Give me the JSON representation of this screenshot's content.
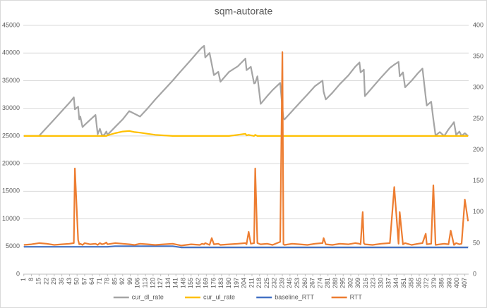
{
  "chart_data": {
    "type": "line",
    "title": "sqm-autorate",
    "grid": true,
    "legend": "bottom",
    "x": [
      1,
      8,
      15,
      22,
      29,
      36,
      43,
      47,
      48,
      51,
      52,
      53,
      55,
      57,
      62,
      67,
      69,
      71,
      73,
      75,
      77,
      78,
      85,
      92,
      98,
      103,
      108,
      115,
      122,
      130,
      138,
      146,
      155,
      163,
      165,
      167,
      168,
      172,
      174,
      176,
      180,
      182,
      190,
      198,
      205,
      206,
      208,
      210,
      213,
      214,
      216,
      219,
      225,
      230,
      237,
      239,
      240,
      241,
      248,
      255,
      262,
      269,
      276,
      277,
      279,
      285,
      292,
      300,
      306,
      310,
      311,
      313,
      314,
      315,
      322,
      330,
      338,
      342,
      346,
      347,
      350,
      352,
      358,
      364,
      368,
      371,
      372,
      376,
      378,
      380,
      384,
      388,
      392,
      394,
      397,
      399,
      402,
      404,
      407,
      410
    ],
    "xlim": [
      0.5,
      410.5
    ],
    "xticks": [
      1,
      8,
      15,
      22,
      29,
      36,
      43,
      50,
      57,
      64,
      71,
      78,
      85,
      92,
      99,
      106,
      113,
      120,
      127,
      134,
      141,
      148,
      155,
      162,
      169,
      176,
      183,
      190,
      197,
      204,
      211,
      218,
      225,
      232,
      239,
      246,
      253,
      260,
      267,
      274,
      281,
      288,
      295,
      302,
      309,
      316,
      323,
      330,
      337,
      344,
      351,
      358,
      365,
      372,
      379,
      386,
      393,
      400,
      407
    ],
    "ylim": [
      0,
      45000
    ],
    "yticks": [
      0,
      5000,
      10000,
      15000,
      20000,
      25000,
      30000,
      35000,
      40000,
      45000
    ],
    "y2lim": [
      0,
      400
    ],
    "y2ticks": [
      0,
      50,
      100,
      150,
      200,
      250,
      300,
      350,
      400
    ],
    "series": [
      {
        "name": "cur_dl_rate",
        "color": "#a5a5a5",
        "values": [
          25000,
          25000,
          25000,
          26500,
          28000,
          29500,
          31000,
          32000,
          29800,
          30300,
          28000,
          28500,
          26600,
          27000,
          27900,
          28800,
          25300,
          26300,
          25100,
          25200,
          25800,
          25200,
          26600,
          28000,
          29500,
          29000,
          28500,
          30000,
          31600,
          33300,
          35000,
          36800,
          38800,
          40600,
          41000,
          41300,
          39200,
          40000,
          38000,
          36000,
          36600,
          34800,
          36600,
          37600,
          39000,
          36900,
          37200,
          37500,
          34500,
          34600,
          35800,
          30800,
          32200,
          33300,
          34600,
          30000,
          28200,
          28000,
          29500,
          31000,
          32500,
          34000,
          35000,
          33000,
          31600,
          32800,
          34400,
          36000,
          37500,
          38300,
          36500,
          36800,
          37000,
          32200,
          33800,
          35600,
          37300,
          37900,
          38400,
          35800,
          36500,
          33800,
          35000,
          36400,
          37200,
          32000,
          30500,
          31200,
          28000,
          25100,
          25700,
          25000,
          26200,
          26700,
          27500,
          25200,
          25800,
          25000,
          25500,
          25000
        ]
      },
      {
        "name": "cur_ul_rate",
        "color": "#ffc000",
        "values": [
          25000,
          25000,
          25000,
          25000,
          25000,
          25000,
          25000,
          25000,
          25000,
          25000,
          25000,
          25000,
          25000,
          25000,
          25000,
          25000,
          25000,
          25000,
          25000,
          25000,
          25000,
          25100,
          25500,
          25800,
          25900,
          25700,
          25600,
          25400,
          25200,
          25100,
          25000,
          25000,
          25000,
          25000,
          25000,
          25000,
          25000,
          25000,
          25000,
          25000,
          25000,
          25000,
          25000,
          25200,
          25400,
          25100,
          25200,
          25100,
          25000,
          25200,
          25000,
          25000,
          25000,
          25000,
          25000,
          25000,
          25000,
          25000,
          25000,
          25000,
          25000,
          25000,
          25000,
          25000,
          25000,
          25000,
          25000,
          25000,
          25000,
          25000,
          25000,
          25000,
          25000,
          25000,
          25000,
          25000,
          25000,
          25000,
          25000,
          25000,
          25000,
          25000,
          25000,
          25000,
          25000,
          25000,
          25000,
          25000,
          25000,
          25000,
          25000,
          25000,
          25000,
          25000,
          25000,
          25000,
          25000,
          25000,
          25000,
          25000
        ]
      },
      {
        "name": "baseline_RTT",
        "color": "#4472c4",
        "axis": "y2",
        "values": [
          44,
          44,
          44,
          44,
          44,
          44,
          44,
          44,
          44,
          44,
          44,
          44,
          44,
          44,
          44,
          44,
          44,
          44,
          44,
          44,
          44,
          44,
          45,
          45,
          45,
          45,
          45,
          45,
          45,
          45,
          45,
          43,
          43,
          43,
          43,
          43,
          43,
          43,
          43,
          43,
          43,
          43,
          43,
          43,
          43,
          43,
          43,
          43,
          43,
          43,
          43,
          43,
          43,
          43,
          43,
          43,
          43,
          43,
          43,
          43,
          43,
          43,
          43,
          43,
          43,
          43,
          43,
          43,
          43,
          43,
          43,
          43,
          43,
          43,
          43,
          43,
          43,
          43,
          43,
          43,
          43,
          43,
          43,
          43,
          43,
          43,
          43,
          43,
          43,
          43,
          43,
          43,
          43,
          43,
          43,
          43,
          43,
          43,
          43,
          43
        ]
      },
      {
        "name": "RTT",
        "color": "#ed7d31",
        "axis": "y2",
        "values": [
          47,
          48,
          50,
          49,
          47,
          48,
          49,
          50,
          170,
          55,
          48,
          49,
          47,
          50,
          48,
          49,
          47,
          50,
          48,
          49,
          51,
          48,
          50,
          49,
          48,
          47,
          49,
          48,
          47,
          48,
          49,
          46,
          48,
          47,
          49,
          48,
          50,
          47,
          58,
          48,
          49,
          47,
          48,
          49,
          50,
          48,
          68,
          49,
          50,
          170,
          50,
          48,
          49,
          47,
          52,
          357,
          48,
          47,
          49,
          48,
          47,
          49,
          50,
          58,
          48,
          47,
          49,
          48,
          50,
          49,
          48,
          100,
          50,
          48,
          47,
          49,
          50,
          140,
          49,
          100,
          48,
          50,
          47,
          49,
          50,
          65,
          48,
          49,
          143,
          47,
          48,
          49,
          48,
          70,
          47,
          50,
          48,
          49,
          120,
          85
        ]
      }
    ]
  }
}
